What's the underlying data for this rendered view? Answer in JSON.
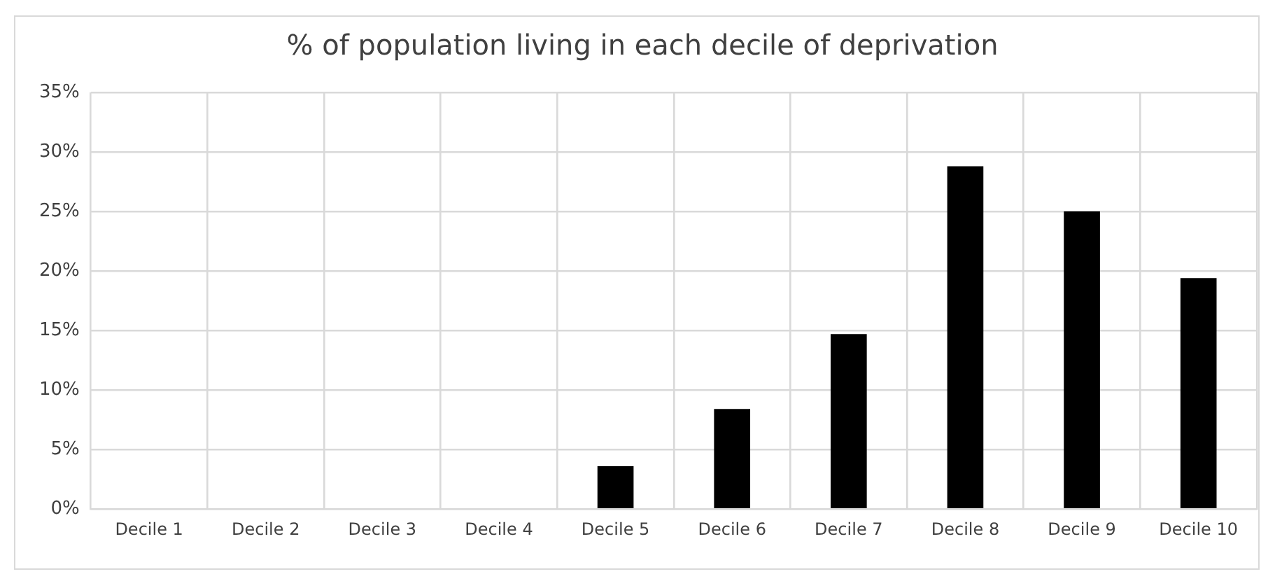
{
  "chart_data": {
    "type": "bar",
    "title": "% of population living in each decile of deprivation",
    "categories": [
      "Decile 1",
      "Decile 2",
      "Decile 3",
      "Decile 4",
      "Decile 5",
      "Decile 6",
      "Decile 7",
      "Decile 8",
      "Decile 9",
      "Decile 10"
    ],
    "values": [
      0,
      0,
      0,
      0,
      3.6,
      8.4,
      14.7,
      28.8,
      25.0,
      19.4
    ],
    "color": "#000000",
    "ylim": [
      0,
      35
    ],
    "yticks": [
      {
        "value": 0,
        "label": "0%"
      },
      {
        "value": 5,
        "label": "5%"
      },
      {
        "value": 10,
        "label": "10%"
      },
      {
        "value": 15,
        "label": "15%"
      },
      {
        "value": 20,
        "label": "20%"
      },
      {
        "value": 25,
        "label": "25%"
      },
      {
        "value": 30,
        "label": "30%"
      },
      {
        "value": 35,
        "label": "35%"
      }
    ],
    "grid": true
  }
}
